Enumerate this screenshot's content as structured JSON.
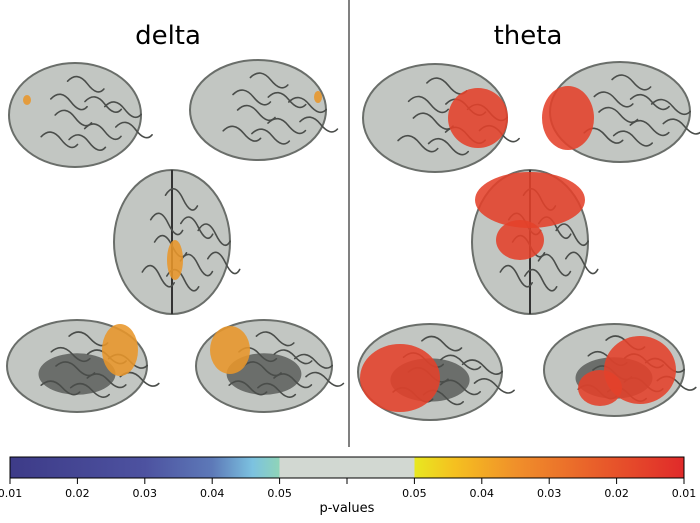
{
  "panels": [
    {
      "title": "delta"
    },
    {
      "title": "theta"
    }
  ],
  "colorbar": {
    "ticks": [
      "0.01",
      "0.02",
      "0.03",
      "0.04",
      "0.05",
      "0.05",
      "0.04",
      "0.03",
      "0.02",
      "0.01"
    ],
    "label": "p-values"
  }
}
